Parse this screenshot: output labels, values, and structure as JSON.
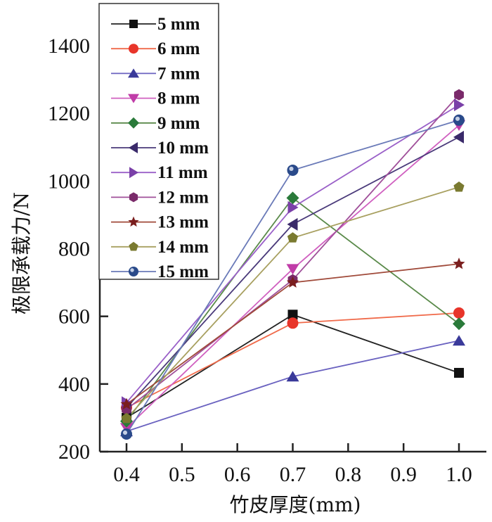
{
  "chart_data": {
    "type": "line",
    "title": "",
    "xlabel": "竹皮厚度(mm)",
    "ylabel": "极限承载力/N",
    "x": [
      0.4,
      0.7,
      1.0
    ],
    "xlim": [
      0.35,
      1.04
    ],
    "ylim": [
      200,
      1400
    ],
    "xticks": [
      "0.4",
      "0.5",
      "0.6",
      "0.7",
      "0.8",
      "0.9",
      "1.0"
    ],
    "xtick_values": [
      0.4,
      0.5,
      0.6,
      0.7,
      0.8,
      0.9,
      1.0
    ],
    "yticks": [
      "200",
      "400",
      "600",
      "800",
      "1000",
      "1200",
      "1400"
    ],
    "ytick_values": [
      200,
      400,
      600,
      800,
      1000,
      1200,
      1400
    ],
    "grid": false,
    "legend_position": "top-left",
    "series": [
      {
        "name": "5 mm",
        "color": "#222222",
        "marker": "square",
        "marker_color": "#111111",
        "values": [
          300,
          605,
          433
        ]
      },
      {
        "name": "6 mm",
        "color": "#f06a4a",
        "marker": "circle",
        "marker_color": "#e8352a",
        "values": [
          330,
          580,
          610
        ]
      },
      {
        "name": "7 mm",
        "color": "#6a62c0",
        "marker": "triangle-up",
        "marker_color": "#3a3a9a",
        "values": [
          260,
          422,
          528
        ]
      },
      {
        "name": "8 mm",
        "color": "#d060c0",
        "marker": "triangle-down",
        "marker_color": "#c03ca8",
        "values": [
          270,
          740,
          1165
        ]
      },
      {
        "name": "9 mm",
        "color": "#5a8a4a",
        "marker": "diamond",
        "marker_color": "#2a7a3a",
        "values": [
          290,
          950,
          578
        ]
      },
      {
        "name": "10 mm",
        "color": "#4a3a7a",
        "marker": "triangle-left",
        "marker_color": "#3a2a6a",
        "values": [
          330,
          872,
          1130
        ]
      },
      {
        "name": "11 mm",
        "color": "#9a60c8",
        "marker": "triangle-right",
        "marker_color": "#7a40a8",
        "values": [
          345,
          922,
          1225
        ]
      },
      {
        "name": "12 mm",
        "color": "#a0509a",
        "marker": "hexagon",
        "marker_color": "#7a2a6a",
        "values": [
          325,
          708,
          1255
        ]
      },
      {
        "name": "13 mm",
        "color": "#a04a3a",
        "marker": "star",
        "marker_color": "#7a1e1e",
        "values": [
          340,
          700,
          755
        ]
      },
      {
        "name": "14 mm",
        "color": "#a8a060",
        "marker": "pentagon",
        "marker_color": "#7a7a30",
        "values": [
          298,
          832,
          982
        ]
      },
      {
        "name": "15 mm",
        "color": "#6a7ab8",
        "marker": "sphere",
        "marker_color": "#2a4a8a",
        "values": [
          252,
          1032,
          1180
        ]
      }
    ]
  }
}
